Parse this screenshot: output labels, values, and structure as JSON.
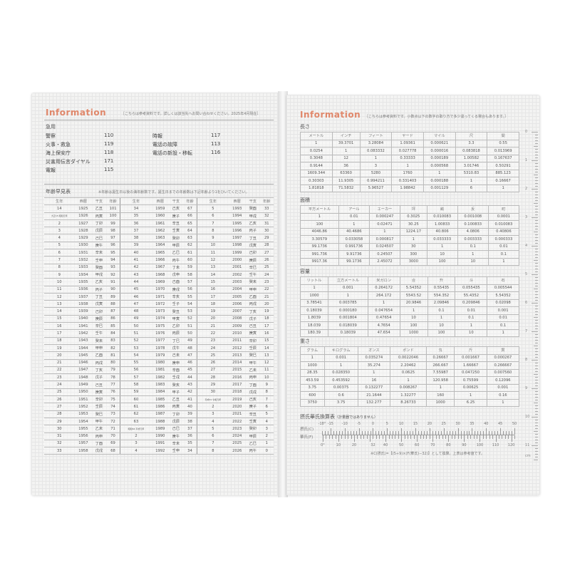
{
  "left": {
    "title": "Information",
    "note": "［こちらは参考資料です。詳しくは該当先へお問い合わせください。2025年4月現在］",
    "emergency_heading": "急用",
    "emergency": [
      [
        "警察",
        "110"
      ],
      [
        "火事・救急",
        "119"
      ],
      [
        "海上保安庁",
        "118"
      ],
      [
        "災害用伝言ダイヤル",
        "171"
      ],
      [
        "電報",
        "115"
      ],
      [
        "時報",
        "117"
      ],
      [
        "電話の故障",
        "113"
      ],
      [
        "電話の新設・移転",
        "116"
      ]
    ],
    "age_heading": "年齢早見表",
    "age_note": "※年齢は誕生日以後の満年齢数です。誕生日までの年齢数は下記年齢より1をひいてください。",
    "age_columns": [
      "生年",
      "西暦",
      "干支",
      "年齢"
    ],
    "age_groups": [
      [
        [
          "14",
          "1925",
          "乙丑",
          "101"
        ],
        [
          "大正15 昭和元年",
          "1926",
          "丙寅",
          "100"
        ],
        [
          "2",
          "1927",
          "丁卯",
          "99"
        ],
        [
          "3",
          "1928",
          "戊辰",
          "98"
        ],
        [
          "4",
          "1929",
          "己巳",
          "97"
        ],
        [
          "5",
          "1930",
          "庚午",
          "96"
        ],
        [
          "6",
          "1931",
          "辛未",
          "95"
        ],
        [
          "7",
          "1932",
          "壬申",
          "94"
        ],
        [
          "8",
          "1933",
          "癸酉",
          "93"
        ],
        [
          "9",
          "1934",
          "甲戌",
          "92"
        ],
        [
          "10",
          "1935",
          "乙亥",
          "91"
        ],
        [
          "11",
          "1936",
          "丙子",
          "90"
        ],
        [
          "12",
          "1937",
          "丁丑",
          "89"
        ],
        [
          "13",
          "1938",
          "戊寅",
          "88"
        ],
        [
          "14",
          "1939",
          "己卯",
          "87"
        ],
        [
          "15",
          "1940",
          "庚辰",
          "86"
        ],
        [
          "16",
          "1941",
          "辛巳",
          "85"
        ],
        [
          "17",
          "1942",
          "壬午",
          "84"
        ],
        [
          "18",
          "1943",
          "癸未",
          "83"
        ],
        [
          "19",
          "1944",
          "甲申",
          "82"
        ],
        [
          "20",
          "1945",
          "乙酉",
          "81"
        ],
        [
          "21",
          "1946",
          "丙戌",
          "80"
        ],
        [
          "22",
          "1947",
          "丁亥",
          "79"
        ],
        [
          "23",
          "1948",
          "戊子",
          "78"
        ],
        [
          "24",
          "1949",
          "己丑",
          "77"
        ],
        [
          "25",
          "1950",
          "庚寅",
          "76"
        ],
        [
          "26",
          "1951",
          "辛卯",
          "75"
        ],
        [
          "27",
          "1952",
          "壬辰",
          "74"
        ],
        [
          "28",
          "1953",
          "癸巳",
          "73"
        ],
        [
          "29",
          "1954",
          "甲午",
          "72"
        ],
        [
          "30",
          "1955",
          "乙未",
          "71"
        ],
        [
          "31",
          "1956",
          "丙申",
          "70"
        ],
        [
          "32",
          "1957",
          "丁酉",
          "69"
        ],
        [
          "33",
          "1958",
          "戊戌",
          "68"
        ]
      ],
      [
        [
          "34",
          "1959",
          "己亥",
          "67"
        ],
        [
          "35",
          "1960",
          "庚子",
          "66"
        ],
        [
          "36",
          "1961",
          "辛丑",
          "65"
        ],
        [
          "37",
          "1962",
          "壬寅",
          "64"
        ],
        [
          "38",
          "1963",
          "癸卯",
          "63"
        ],
        [
          "39",
          "1964",
          "甲辰",
          "62"
        ],
        [
          "40",
          "1965",
          "乙巳",
          "61"
        ],
        [
          "41",
          "1966",
          "丙午",
          "60"
        ],
        [
          "42",
          "1967",
          "丁未",
          "59"
        ],
        [
          "43",
          "1968",
          "戊申",
          "58"
        ],
        [
          "44",
          "1969",
          "己酉",
          "57"
        ],
        [
          "45",
          "1970",
          "庚戌",
          "56"
        ],
        [
          "46",
          "1971",
          "辛亥",
          "55"
        ],
        [
          "47",
          "1972",
          "壬子",
          "54"
        ],
        [
          "48",
          "1973",
          "癸丑",
          "53"
        ],
        [
          "49",
          "1974",
          "甲寅",
          "52"
        ],
        [
          "50",
          "1975",
          "乙卯",
          "51"
        ],
        [
          "51",
          "1976",
          "丙辰",
          "50"
        ],
        [
          "52",
          "1977",
          "丁巳",
          "49"
        ],
        [
          "53",
          "1978",
          "戊午",
          "48"
        ],
        [
          "54",
          "1979",
          "己未",
          "47"
        ],
        [
          "55",
          "1980",
          "庚申",
          "46"
        ],
        [
          "56",
          "1981",
          "辛酉",
          "45"
        ],
        [
          "57",
          "1982",
          "壬戌",
          "44"
        ],
        [
          "58",
          "1983",
          "癸亥",
          "43"
        ],
        [
          "59",
          "1984",
          "甲子",
          "42"
        ],
        [
          "60",
          "1985",
          "乙丑",
          "41"
        ],
        [
          "61",
          "1986",
          "丙寅",
          "40"
        ],
        [
          "62",
          "1987",
          "丁卯",
          "39"
        ],
        [
          "63",
          "1988",
          "戊辰",
          "38"
        ],
        [
          "昭和64 平成元年",
          "1989",
          "己巳",
          "37"
        ],
        [
          "2",
          "1990",
          "庚午",
          "36"
        ],
        [
          "3",
          "1991",
          "辛未",
          "35"
        ],
        [
          "4",
          "1992",
          "壬申",
          "34"
        ]
      ],
      [
        [
          "5",
          "1993",
          "癸酉",
          "33"
        ],
        [
          "6",
          "1994",
          "甲戌",
          "32"
        ],
        [
          "7",
          "1995",
          "乙亥",
          "31"
        ],
        [
          "8",
          "1996",
          "丙子",
          "30"
        ],
        [
          "9",
          "1997",
          "丁丑",
          "29"
        ],
        [
          "10",
          "1998",
          "戊寅",
          "28"
        ],
        [
          "11",
          "1999",
          "己卯",
          "27"
        ],
        [
          "12",
          "2000",
          "庚辰",
          "26"
        ],
        [
          "13",
          "2001",
          "辛巳",
          "25"
        ],
        [
          "14",
          "2002",
          "壬午",
          "24"
        ],
        [
          "15",
          "2003",
          "癸未",
          "23"
        ],
        [
          "16",
          "2004",
          "甲申",
          "22"
        ],
        [
          "17",
          "2005",
          "乙酉",
          "21"
        ],
        [
          "18",
          "2006",
          "丙戌",
          "20"
        ],
        [
          "19",
          "2007",
          "丁亥",
          "19"
        ],
        [
          "20",
          "2008",
          "戊子",
          "18"
        ],
        [
          "21",
          "2009",
          "己丑",
          "17"
        ],
        [
          "22",
          "2010",
          "庚寅",
          "16"
        ],
        [
          "23",
          "2011",
          "辛卯",
          "15"
        ],
        [
          "24",
          "2012",
          "壬辰",
          "14"
        ],
        [
          "25",
          "2013",
          "癸巳",
          "13"
        ],
        [
          "26",
          "2014",
          "甲午",
          "12"
        ],
        [
          "27",
          "2015",
          "乙未",
          "11"
        ],
        [
          "28",
          "2016",
          "丙申",
          "10"
        ],
        [
          "29",
          "2017",
          "丁酉",
          "9"
        ],
        [
          "30",
          "2018",
          "戊戌",
          "8"
        ],
        [
          "平成31 令和元年",
          "2019",
          "己亥",
          "7"
        ],
        [
          "2",
          "2020",
          "庚子",
          "6"
        ],
        [
          "3",
          "2021",
          "辛丑",
          "5"
        ],
        [
          "4",
          "2022",
          "壬寅",
          "4"
        ],
        [
          "5",
          "2023",
          "癸卯",
          "3"
        ],
        [
          "6",
          "2024",
          "甲辰",
          "2"
        ],
        [
          "7",
          "2025",
          "乙巳",
          "1"
        ],
        [
          "8",
          "2026",
          "丙午",
          "0"
        ]
      ]
    ]
  },
  "right": {
    "title": "Information",
    "note": "［こちらは参考資料です。小数点以下の数字の取り方で多少違ってくる場合もあります。］",
    "tables": [
      {
        "heading": "長さ",
        "columns": [
          "メートル",
          "インチ",
          "フィート",
          "ヤード",
          "マイル",
          "尺",
          "間"
        ],
        "rows": [
          [
            "1",
            "39.3701",
            "3.28084",
            "1.09361",
            "0.000621",
            "3.3",
            "0.55"
          ],
          [
            "0.0254",
            "1",
            "0.083332",
            "0.027778",
            "0.000016",
            "0.083818",
            "0.013969"
          ],
          [
            "0.3048",
            "12",
            "1",
            "0.33333",
            "0.000189",
            "1.00582",
            "0.167637"
          ],
          [
            "0.9144",
            "36",
            "3",
            "1",
            "0.000568",
            "3.01746",
            "0.50291"
          ],
          [
            "1609.344",
            "63360",
            "5280",
            "1760",
            "1",
            "5310.83",
            "885.123"
          ],
          [
            "0.30303",
            "11.9305",
            "0.994211",
            "0.331403",
            "0.000188",
            "1",
            "0.16667"
          ],
          [
            "1.81818",
            "71.5832",
            "5.96527",
            "1.98842",
            "0.001129",
            "6",
            "1"
          ]
        ]
      },
      {
        "heading": "面積",
        "columns": [
          "平方メートル",
          "アール",
          "エーカー",
          "坪",
          "畝",
          "反",
          "町"
        ],
        "rows": [
          [
            "1",
            "0.01",
            "0.000247",
            "0.3025",
            "0.010083",
            "0.001008",
            "0.0001"
          ],
          [
            "100",
            "1",
            "0.02471",
            "30.25",
            "1.00833",
            "0.100833",
            "0.010083"
          ],
          [
            "4046.86",
            "40.4686",
            "1",
            "1224.17",
            "40.806",
            "4.0806",
            "0.40806"
          ],
          [
            "3.30579",
            "0.033058",
            "0.000817",
            "1",
            "0.033333",
            "0.003333",
            "0.000333"
          ],
          [
            "99.1736",
            "0.991736",
            "0.024507",
            "30",
            "1",
            "0.1",
            "0.01"
          ],
          [
            "991.736",
            "9.91736",
            "0.24507",
            "300",
            "10",
            "1",
            "0.1"
          ],
          [
            "9917.36",
            "99.1736",
            "2.45072",
            "3000",
            "100",
            "10",
            "1"
          ]
        ]
      },
      {
        "heading": "容量",
        "columns": [
          "リットル",
          "立方メートル",
          "米ガロン",
          "合",
          "升",
          "斗",
          "石"
        ],
        "rows": [
          [
            "1",
            "0.001",
            "0.264172",
            "5.54352",
            "0.55435",
            "0.055435",
            "0.005544"
          ],
          [
            "1000",
            "1",
            "264.172",
            "5543.52",
            "554.352",
            "55.4352",
            "5.54352"
          ],
          [
            "3.78541",
            "0.003785",
            "1",
            "20.9846",
            "2.09846",
            "0.209846",
            "0.02098"
          ],
          [
            "0.18039",
            "0.000180",
            "0.047654",
            "1",
            "0.1",
            "0.01",
            "0.001"
          ],
          [
            "1.8039",
            "0.001804",
            "0.47654",
            "10",
            "1",
            "0.1",
            "0.01"
          ],
          [
            "18.039",
            "0.018039",
            "4.7654",
            "100",
            "10",
            "1",
            "0.1"
          ],
          [
            "180.39",
            "0.18039",
            "47.654",
            "1000",
            "100",
            "10",
            "1"
          ]
        ]
      },
      {
        "heading": "重さ",
        "columns": [
          "グラム",
          "キログラム",
          "オンス",
          "ポンド",
          "匁",
          "斤",
          "貫"
        ],
        "rows": [
          [
            "1",
            "0.001",
            "0.035274",
            "0.0022046",
            "0.26667",
            "0.001667",
            "0.000267"
          ],
          [
            "1000",
            "1",
            "35.274",
            "2.20462",
            "266.667",
            "1.66667",
            "0.266667"
          ],
          [
            "28.35",
            "0.028350",
            "1",
            "0.0625",
            "7.55987",
            "0.047250",
            "0.007560"
          ],
          [
            "453.59",
            "0.453592",
            "16",
            "1",
            "120.958",
            "0.75599",
            "0.12096"
          ],
          [
            "3.75",
            "0.00375",
            "0.132277",
            "0.008267",
            "1",
            "0.00625",
            "0.001"
          ],
          [
            "600",
            "0.6",
            "21.1644",
            "1.32277",
            "160",
            "1",
            "0.16"
          ],
          [
            "3750",
            "3.75",
            "132.277",
            "8.26733",
            "1000",
            "6.25",
            "1"
          ]
        ]
      }
    ],
    "temperature": {
      "heading": "摂氏華氏換算表",
      "subnote": "（計量器ではありません）",
      "celsius_label": "摂氏(C)",
      "fahrenheit_label": "華氏(F)",
      "celsius_ticks": [
        "-18°",
        "-15",
        "-10",
        "-5",
        "0",
        "5",
        "10",
        "15",
        "20",
        "25",
        "30",
        "35",
        "40",
        "45",
        "50"
      ],
      "fahrenheit_ticks": [
        "0°",
        "10",
        "20",
        "32",
        "40",
        "50",
        "60",
        "70",
        "80",
        "90",
        "100",
        "110",
        "120"
      ],
      "formula": "※C(摂氏)=【(5÷9)×(F(華氏)−32)】として換算。上表は参考値です。"
    },
    "ruler": {
      "labels": [
        "0",
        "1",
        "2",
        "3",
        "4",
        "5",
        "6",
        "7",
        "8",
        "9",
        "10",
        "11"
      ],
      "unit": "cm"
    }
  }
}
